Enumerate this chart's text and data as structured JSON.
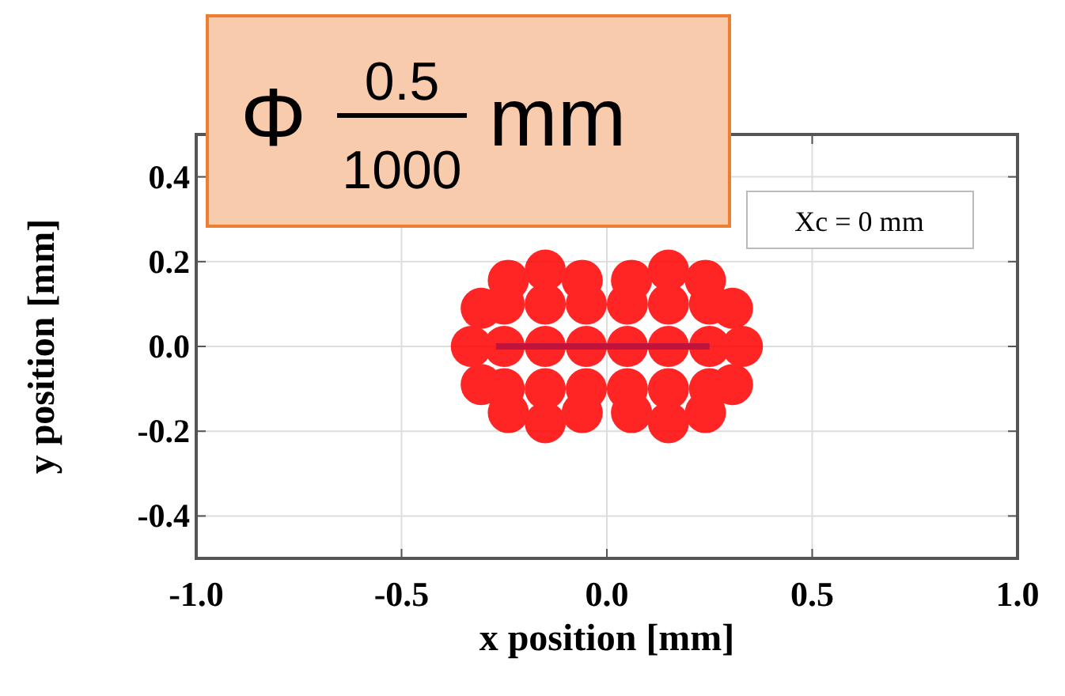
{
  "chart_data": {
    "type": "scatter",
    "xlabel": "x position [mm]",
    "ylabel": "y position [mm]",
    "xlim": [
      -1,
      1
    ],
    "ylim": [
      -0.5,
      0.5
    ],
    "xticks": [
      {
        "value": -1,
        "label": "-1.0"
      },
      {
        "value": -0.5,
        "label": "-0.5"
      },
      {
        "value": 0,
        "label": "0.0"
      },
      {
        "value": 0.5,
        "label": "0.5"
      },
      {
        "value": 1,
        "label": "1.0"
      }
    ],
    "yticks": [
      {
        "value": -0.4,
        "label": "-0.4"
      },
      {
        "value": -0.2,
        "label": "-0.2"
      },
      {
        "value": 0,
        "label": "0.0"
      },
      {
        "value": 0.2,
        "label": "0.2"
      },
      {
        "value": 0.4,
        "label": "0.4"
      }
    ],
    "grid": true,
    "marker": "circle",
    "series": [
      {
        "color": "#ff0000",
        "x": [
          -0.06,
          -0.15,
          -0.24,
          -0.306,
          -0.33,
          -0.306,
          -0.24,
          -0.15,
          -0.06,
          0.06,
          0.15,
          0.24,
          0.306,
          0.33,
          0.306,
          0.24,
          0.15,
          0.06,
          -0.25,
          -0.15,
          -0.05,
          0.05,
          0.15,
          0.25,
          -0.25,
          -0.15,
          -0.05,
          0.05,
          0.15,
          0.25,
          -0.25,
          -0.15,
          -0.05,
          0.05,
          0.15,
          0.25
        ],
        "values": [
          0.156,
          0.18,
          0.156,
          0.09,
          0,
          -0.09,
          -0.156,
          -0.18,
          -0.156,
          0.156,
          0.18,
          0.156,
          0.09,
          0,
          -0.09,
          -0.156,
          -0.18,
          -0.156,
          -0.1,
          -0.1,
          -0.1,
          -0.1,
          -0.1,
          -0.1,
          0,
          0,
          0,
          0,
          0,
          0,
          0.1,
          0.1,
          0.1,
          0.1,
          0.1,
          0.1
        ]
      },
      {
        "type": "line",
        "color": "#c0143c",
        "x": [
          -0.27,
          0.25
        ],
        "values": [
          0,
          0
        ],
        "marker": "none"
      }
    ],
    "annotations": [
      "Φ 0.5 1000 mm",
      "Xc = 0 mm"
    ]
  }
}
